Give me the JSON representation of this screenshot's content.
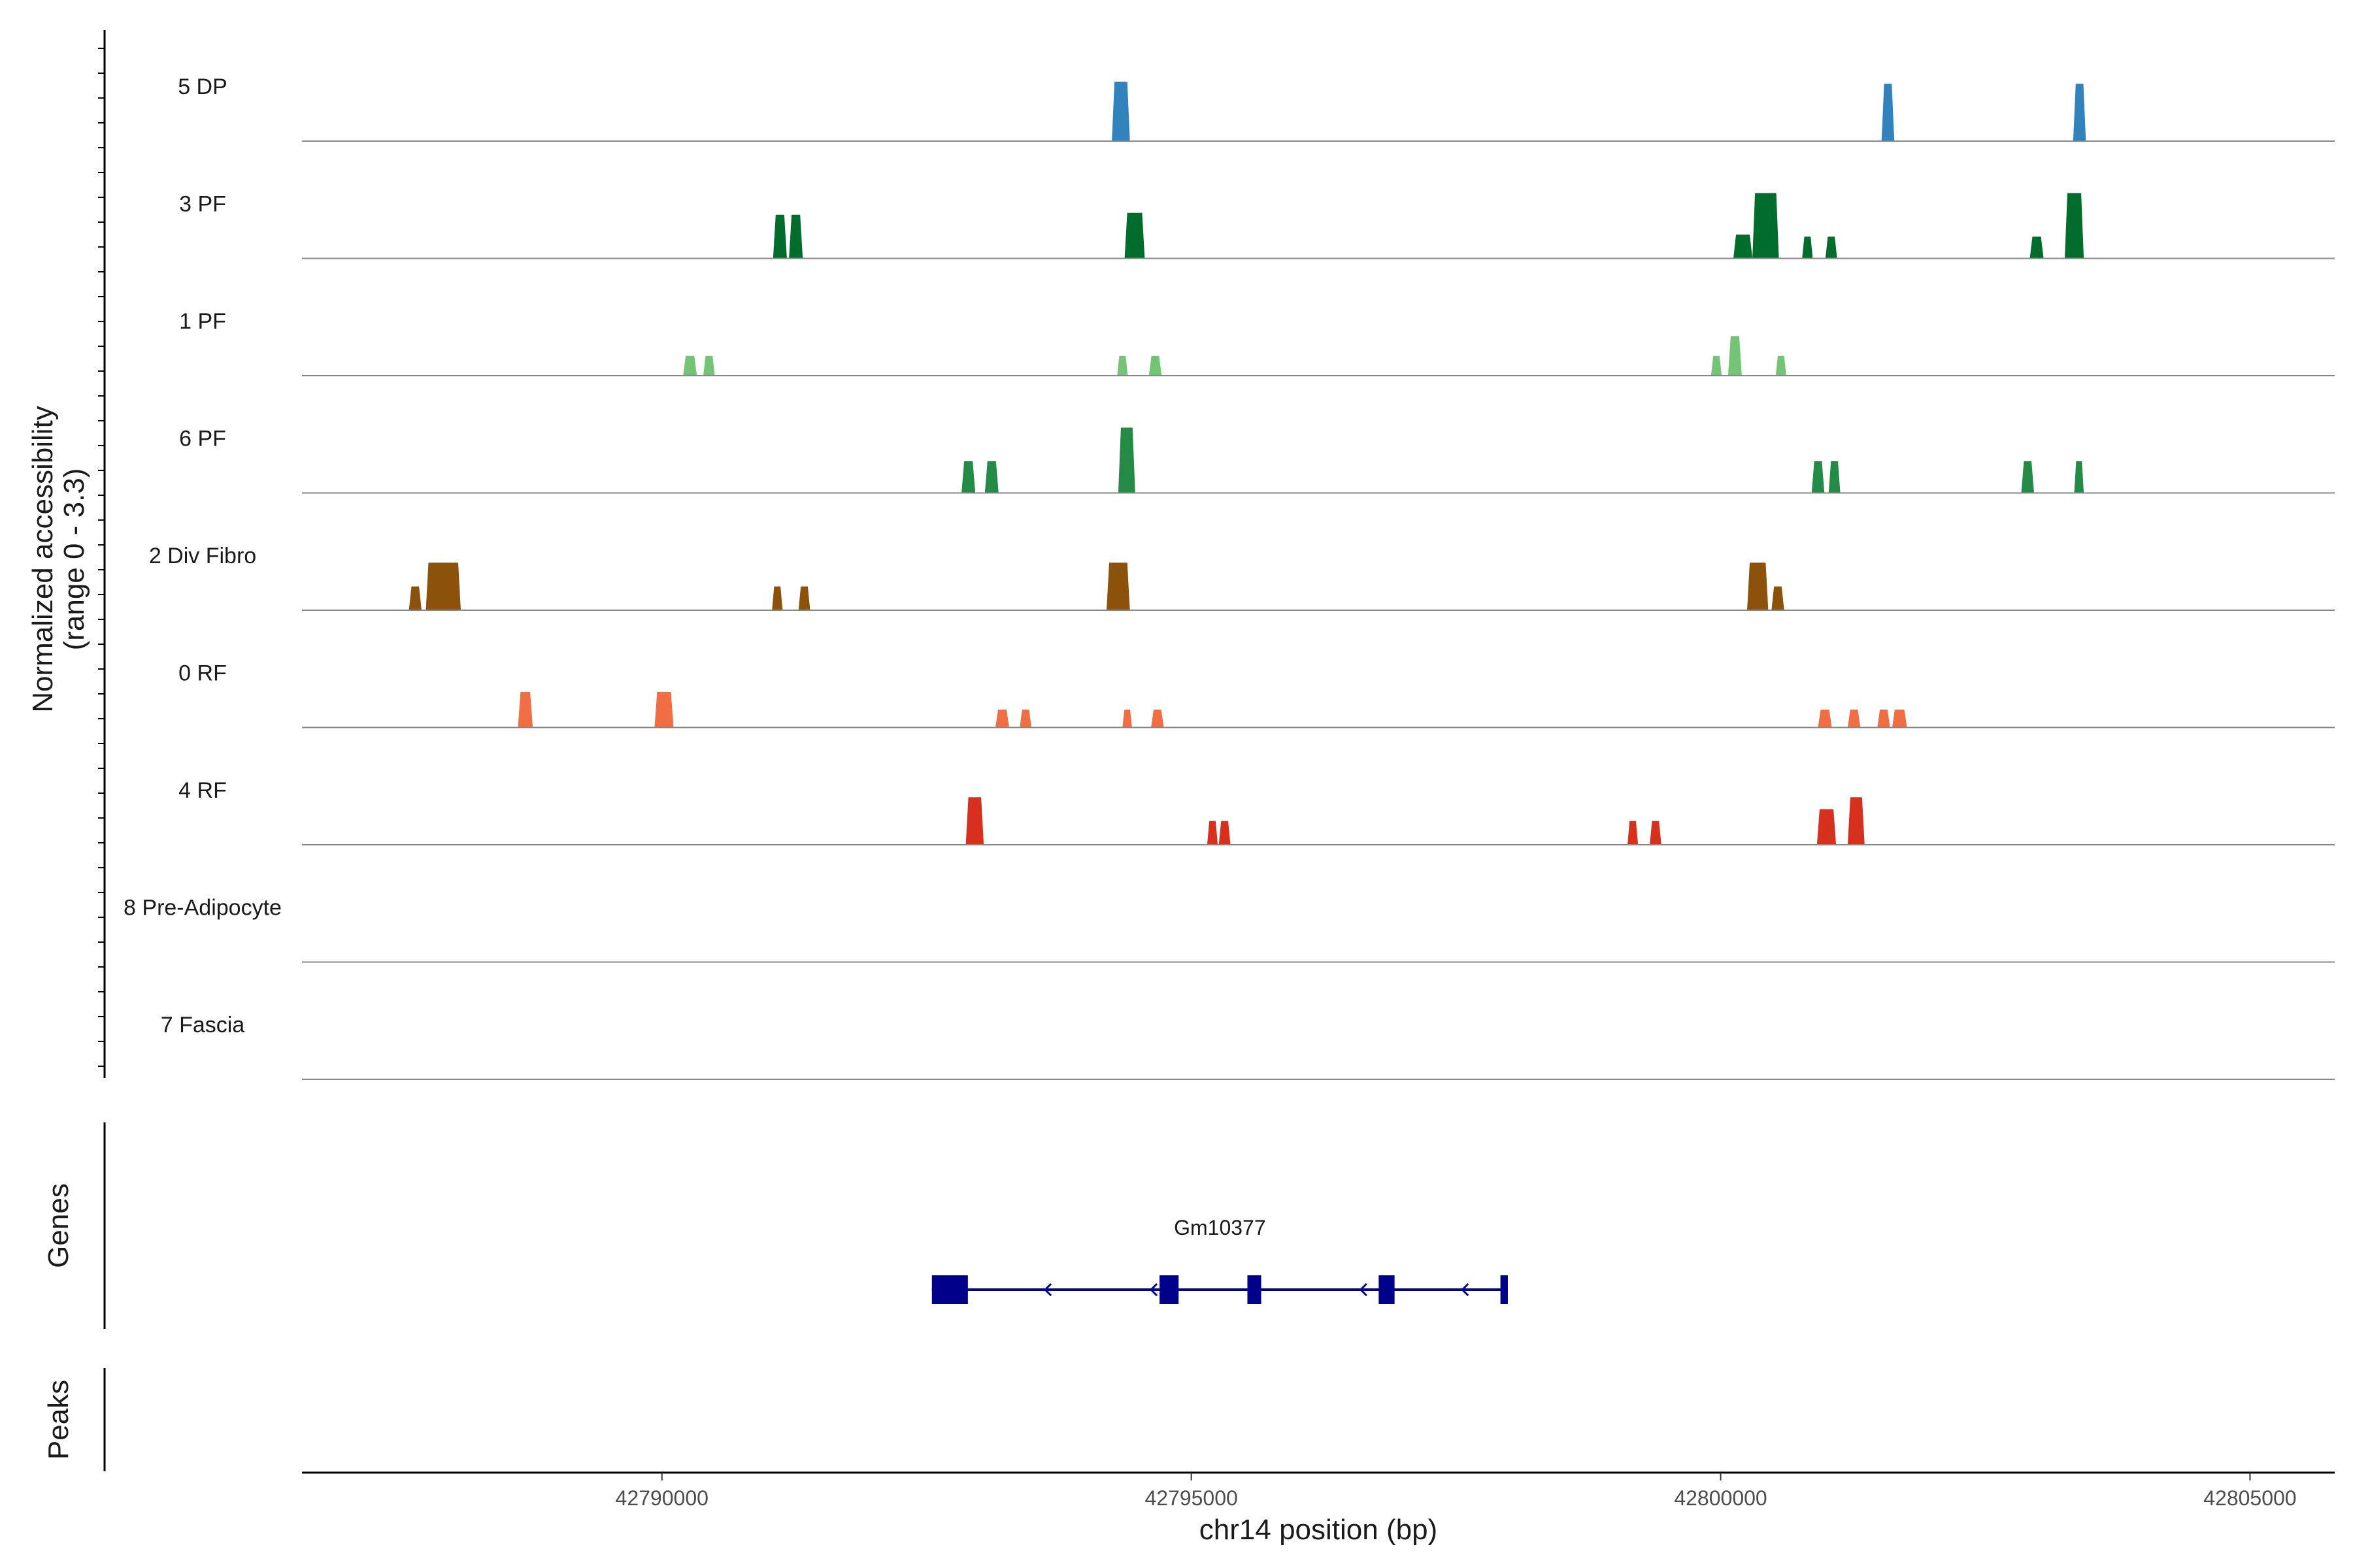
{
  "chart_data": {
    "type": "coverage",
    "xlabel": "chr14 position (bp)",
    "xlim": [
      42786600,
      42805800
    ],
    "x_ticks": [
      42790000,
      42795000,
      42800000,
      42805000
    ],
    "x_tick_labels": [
      "42790000",
      "42795000",
      "42800000",
      "42805000"
    ],
    "coverage_panel": {
      "ylabel_line1": "Normalized accessibility",
      "ylabel_line2": "(range 0 - 3.3)",
      "ylim": [
        0,
        3.3
      ]
    },
    "genes_panel": {
      "ylabel": "Genes"
    },
    "peaks_panel": {
      "ylabel": "Peaks"
    },
    "tracks": [
      {
        "name": "5 DP",
        "color": "#3182BD",
        "peaks": [
          {
            "start": 42794250,
            "end": 42794420,
            "height": 3.0
          },
          {
            "start": 42801520,
            "end": 42801640,
            "height": 2.9
          },
          {
            "start": 42803330,
            "end": 42803450,
            "height": 2.9
          }
        ]
      },
      {
        "name": "3 PF",
        "color": "#006D2C",
        "peaks": [
          {
            "start": 42791050,
            "end": 42791180,
            "height": 2.2
          },
          {
            "start": 42791200,
            "end": 42791330,
            "height": 2.2
          },
          {
            "start": 42794370,
            "end": 42794560,
            "height": 2.3
          },
          {
            "start": 42800120,
            "end": 42800300,
            "height": 1.2
          },
          {
            "start": 42800300,
            "end": 42800550,
            "height": 3.4
          },
          {
            "start": 42800770,
            "end": 42800870,
            "height": 1.1
          },
          {
            "start": 42800990,
            "end": 42801100,
            "height": 1.1
          },
          {
            "start": 42802920,
            "end": 42803050,
            "height": 1.1
          },
          {
            "start": 42803250,
            "end": 42803430,
            "height": 3.4
          }
        ]
      },
      {
        "name": "1 PF",
        "color": "#74C476",
        "peaks": [
          {
            "start": 42790200,
            "end": 42790330,
            "height": 1.0
          },
          {
            "start": 42790390,
            "end": 42790500,
            "height": 1.0
          },
          {
            "start": 42794300,
            "end": 42794400,
            "height": 1.0
          },
          {
            "start": 42794600,
            "end": 42794720,
            "height": 1.0
          },
          {
            "start": 42799910,
            "end": 42800010,
            "height": 1.0
          },
          {
            "start": 42800070,
            "end": 42800200,
            "height": 2.0
          },
          {
            "start": 42800520,
            "end": 42800620,
            "height": 1.0
          }
        ]
      },
      {
        "name": "6 PF",
        "color": "#238B45",
        "peaks": [
          {
            "start": 42792830,
            "end": 42792960,
            "height": 1.6
          },
          {
            "start": 42793050,
            "end": 42793180,
            "height": 1.6
          },
          {
            "start": 42794310,
            "end": 42794470,
            "height": 3.3
          },
          {
            "start": 42800860,
            "end": 42800980,
            "height": 1.6
          },
          {
            "start": 42801020,
            "end": 42801130,
            "height": 1.6
          },
          {
            "start": 42802840,
            "end": 42802960,
            "height": 1.6
          },
          {
            "start": 42803340,
            "end": 42803430,
            "height": 1.6
          }
        ]
      },
      {
        "name": "2 Div Fibro",
        "color": "#8C510A",
        "peaks": [
          {
            "start": 42787610,
            "end": 42787730,
            "height": 1.2
          },
          {
            "start": 42787770,
            "end": 42788100,
            "height": 2.4
          },
          {
            "start": 42791040,
            "end": 42791140,
            "height": 1.2
          },
          {
            "start": 42791290,
            "end": 42791400,
            "height": 1.2
          },
          {
            "start": 42794200,
            "end": 42794420,
            "height": 2.4
          },
          {
            "start": 42800250,
            "end": 42800450,
            "height": 2.4
          },
          {
            "start": 42800480,
            "end": 42800600,
            "height": 1.2
          }
        ]
      },
      {
        "name": "0 RF",
        "color": "#F16D43",
        "peaks": [
          {
            "start": 42788640,
            "end": 42788780,
            "height": 1.8
          },
          {
            "start": 42789930,
            "end": 42790110,
            "height": 1.8
          },
          {
            "start": 42793150,
            "end": 42793280,
            "height": 0.9
          },
          {
            "start": 42793380,
            "end": 42793490,
            "height": 0.9
          },
          {
            "start": 42794350,
            "end": 42794440,
            "height": 0.9
          },
          {
            "start": 42794620,
            "end": 42794740,
            "height": 0.9
          },
          {
            "start": 42800920,
            "end": 42801050,
            "height": 0.9
          },
          {
            "start": 42801200,
            "end": 42801320,
            "height": 0.9
          },
          {
            "start": 42801480,
            "end": 42801600,
            "height": 0.9
          },
          {
            "start": 42801620,
            "end": 42801760,
            "height": 0.9
          }
        ]
      },
      {
        "name": "4 RF",
        "color": "#D7301F",
        "peaks": [
          {
            "start": 42792870,
            "end": 42793040,
            "height": 2.4
          },
          {
            "start": 42795150,
            "end": 42795250,
            "height": 1.2
          },
          {
            "start": 42795260,
            "end": 42795370,
            "height": 1.2
          },
          {
            "start": 42799120,
            "end": 42799220,
            "height": 1.2
          },
          {
            "start": 42799330,
            "end": 42799440,
            "height": 1.2
          },
          {
            "start": 42800910,
            "end": 42801090,
            "height": 1.8
          },
          {
            "start": 42801200,
            "end": 42801360,
            "height": 2.4
          }
        ]
      },
      {
        "name": "8 Pre-Adipocyte",
        "color": "#999999",
        "peaks": []
      },
      {
        "name": "7 Fascia",
        "color": "#999999",
        "peaks": []
      }
    ],
    "gene": {
      "name": "Gm10377",
      "strand": "-",
      "start": 42792550,
      "end": 42797990,
      "color": "#00008B",
      "exons": [
        {
          "start": 42792550,
          "end": 42792890
        },
        {
          "start": 42794700,
          "end": 42794880
        },
        {
          "start": 42795530,
          "end": 42795660
        },
        {
          "start": 42796770,
          "end": 42796920
        },
        {
          "start": 42797920,
          "end": 42797990
        }
      ],
      "arrows": [
        42793620,
        42794620,
        42796600,
        42797560
      ]
    }
  }
}
